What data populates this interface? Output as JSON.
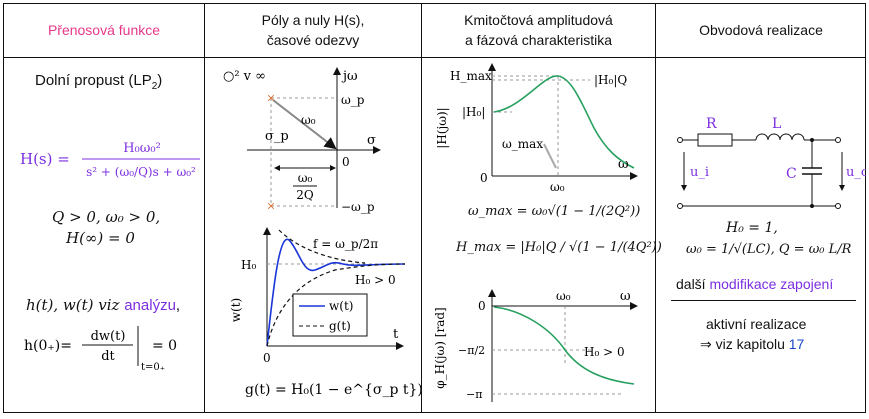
{
  "headers": {
    "col1": "Přenosová funkce",
    "col2_line1": "Póly a nuly H(s),",
    "col2_line2": "časové odezvy",
    "col3_line1": "Kmitočtová amplitudová",
    "col3_line2": "a fázová charakteristika",
    "col4": "Obvodová realizace"
  },
  "col1": {
    "filter_name": "Dolní propust (LP",
    "filter_sub": "2",
    "filter_close": ")",
    "hs_lhs": "H(s) =",
    "hs_num": "H₀ω₀²",
    "hs_den": "s² + (ω₀/Q)s + ω₀²",
    "cond1": "Q > 0, ω₀ > 0,",
    "cond2": "H(∞) = 0",
    "resp_prefix": "h(t), w(t) viz ",
    "resp_link": "analýzu",
    "resp_suffix": ",",
    "h0_lhs": "h(0₊)=",
    "h0_num": "dw(t)",
    "h0_den": "dt",
    "h0_eval": "t=0₊",
    "h0_rhs": "= 0"
  },
  "col2": {
    "zeros_label": "○² v ∞",
    "jw": "jω",
    "wp_top": "ω_p",
    "w0": "ω₀",
    "sigma_p": "σ_p",
    "sigma": "σ",
    "origin": "0",
    "w0_2q_num": "ω₀",
    "w0_2q_den": "2Q",
    "wp_bot": "−ω_p",
    "h0_axis": "H₀",
    "f_label": "f = ω_p/2π",
    "q_cond": "H₀ > 0",
    "wt_axis": "w(t)",
    "legend_w": "w(t)",
    "legend_g": "g(t)",
    "t_axis": "t",
    "time_origin": "0",
    "gt_formula": "g(t) = H₀(1 − e^{σ_p t})"
  },
  "col3": {
    "hmax": "H_max",
    "h0q": "|H₀|Q",
    "h0": "|H₀|",
    "mag_axis": "|H(jω)|",
    "wmax": "ω_max",
    "omega": "ω",
    "zero": "0",
    "w0": "ω₀",
    "wmax_formula": "ω_max = ω₀√(1 − 1/(2Q²))",
    "hmax_formula": "H_max = |H₀|Q / √(1 − 1/(4Q²))",
    "phase_zero": "0",
    "phase_w0": "ω₀",
    "phase_omega": "ω",
    "phase_axis": "φ_H(jω) [rad]",
    "minus_pi_half": "−π/2",
    "minus_pi": "−π",
    "phase_cond": "H₀ > 0"
  },
  "col4": {
    "R": "R",
    "L": "L",
    "C": "C",
    "ui": "u_i",
    "uo": "u_o",
    "h0_eq": "H₀ = 1,",
    "w0_eq": "ω₀ = 1/√(LC), Q = ω₀ L/R",
    "mods_prefix": "další ",
    "mods_link": "modifikace zapojení",
    "active": "aktivní realizace",
    "see_prefix": "⇒ viz kapitolu ",
    "see_link": "17"
  }
}
